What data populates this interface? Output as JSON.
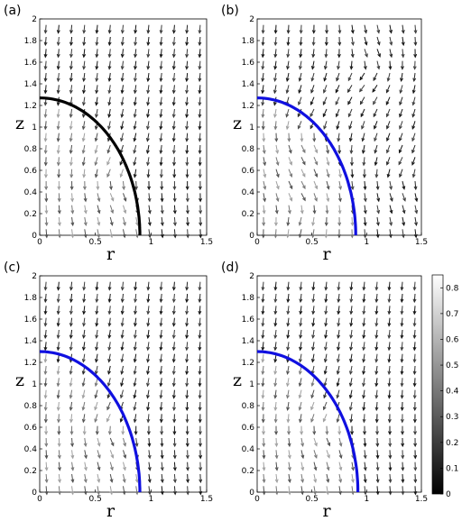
{
  "chart_data": [
    {
      "type": "vector-field",
      "panel_label": "(a)",
      "xlabel": "r",
      "ylabel": "z",
      "xlim": [
        0,
        1.5
      ],
      "ylim": [
        0,
        2
      ],
      "xticks": [
        "0",
        "0.5",
        "1",
        "1.5"
      ],
      "yticks": [
        "0",
        "0.2",
        "0.4",
        "0.6",
        "0.8",
        "1",
        "1.2",
        "1.4",
        "1.6",
        "1.8",
        "2"
      ],
      "interface": {
        "color": "#000000",
        "r0": 0.9,
        "z0": 1.27
      },
      "vortex_centers": [
        {
          "r": 0.62,
          "z": 0.52
        }
      ]
    },
    {
      "type": "vector-field",
      "panel_label": "(b)",
      "xlabel": "r",
      "ylabel": "z",
      "xlim": [
        0,
        1.5
      ],
      "ylim": [
        0,
        2
      ],
      "xticks": [
        "0",
        "0.5",
        "1",
        "1.5"
      ],
      "yticks": [
        "0",
        "0.2",
        "0.4",
        "0.6",
        "0.8",
        "1",
        "1.2",
        "1.4",
        "1.6",
        "1.8",
        "2"
      ],
      "interface": {
        "color": "#1010e0",
        "r0": 0.9,
        "z0": 1.27
      },
      "vortex_centers": [
        {
          "r": 0.4,
          "z": 0.95
        },
        {
          "r": 0.45,
          "z": 0.28
        },
        {
          "r": 1.25,
          "z": 0.55
        },
        {
          "r": 1.1,
          "z": 1.55
        }
      ]
    },
    {
      "type": "vector-field",
      "panel_label": "(c)",
      "xlabel": "r",
      "ylabel": "z",
      "xlim": [
        0,
        1.5
      ],
      "ylim": [
        0,
        2
      ],
      "xticks": [
        "0",
        "0.5",
        "1",
        "1.5"
      ],
      "yticks": [
        "0",
        "0.2",
        "0.4",
        "0.6",
        "0.8",
        "1",
        "1.2",
        "1.4",
        "1.6",
        "1.8",
        "2"
      ],
      "interface": {
        "color": "#1010e0",
        "r0": 0.9,
        "z0": 1.3
      },
      "vortex_centers": [
        {
          "r": 0.58,
          "z": 0.6
        }
      ]
    },
    {
      "type": "vector-field",
      "panel_label": "(d)",
      "xlabel": "r",
      "ylabel": "z",
      "xlim": [
        0,
        1.5
      ],
      "ylim": [
        0,
        2
      ],
      "xticks": [
        "0",
        "0.5",
        "1",
        "1.5"
      ],
      "yticks": [
        "0",
        "0.2",
        "0.4",
        "0.6",
        "0.8",
        "1",
        "1.2",
        "1.4",
        "1.6",
        "1.8",
        "2"
      ],
      "interface": {
        "color": "#1010e0",
        "r0": 0.92,
        "z0": 1.3
      },
      "vortex_centers": [
        {
          "r": 0.55,
          "z": 0.62
        }
      ]
    }
  ],
  "colorbar": {
    "min": 0,
    "max": 0.85,
    "ticks": [
      "0",
      "0.1",
      "0.2",
      "0.3",
      "0.4",
      "0.5",
      "0.6",
      "0.7",
      "0.8"
    ],
    "colormap": "gray"
  }
}
